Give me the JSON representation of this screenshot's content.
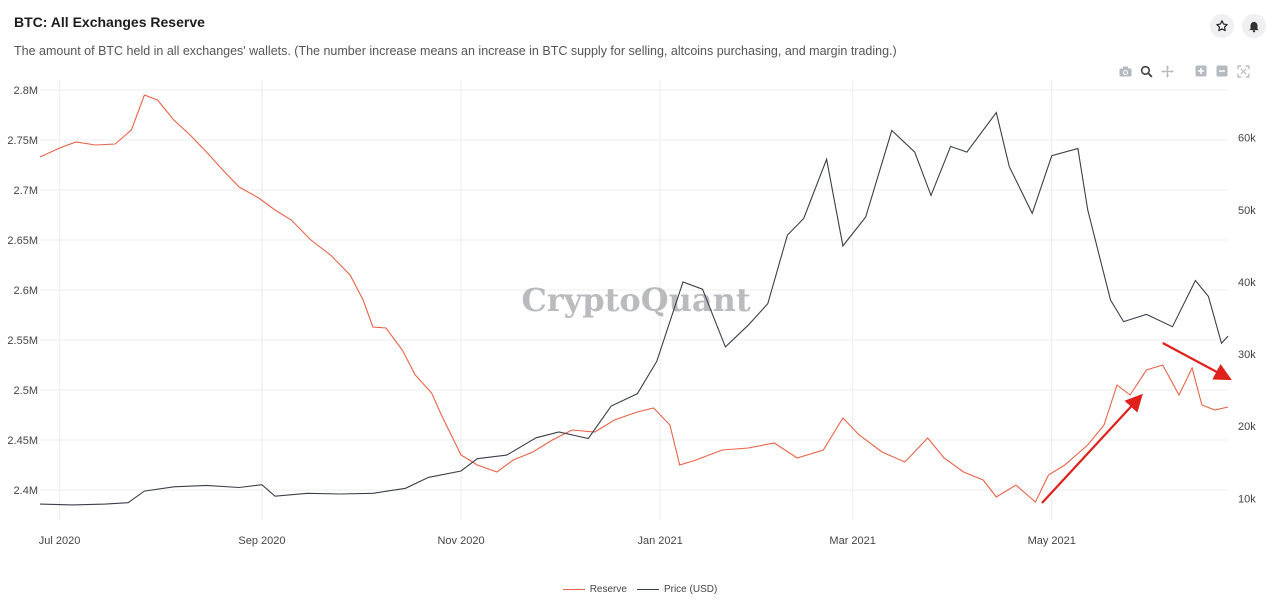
{
  "header": {
    "title": "BTC: All Exchanges Reserve",
    "subtitle": "The amount of BTC held in all exchanges' wallets. (The number increase means an increase in BTC supply for selling, altcoins purchasing, and margin trading.)"
  },
  "actions": {
    "favorite_icon": "star-icon",
    "alert_icon": "bell-icon"
  },
  "modebar": [
    "camera-icon",
    "zoom-icon",
    "pan-icon",
    "zoom-in-icon",
    "zoom-out-icon",
    "autoscale-icon"
  ],
  "watermark": "CryptoQuant",
  "colors": {
    "reserve": "#e8634a",
    "price": "#3a3f4a",
    "arrow": "#e0201b",
    "grid": "#ececec"
  },
  "legend": {
    "reserve": "Reserve",
    "price": "Price (USD)"
  },
  "chart_data": {
    "type": "line",
    "x_axis": {
      "type": "date",
      "range": [
        "2020-06-25",
        "2021-06-24"
      ],
      "ticks": [
        {
          "date": "2020-07-01",
          "label": "Jul 2020"
        },
        {
          "date": "2020-09-01",
          "label": "Sep 2020"
        },
        {
          "date": "2020-11-01",
          "label": "Nov 2020"
        },
        {
          "date": "2021-01-01",
          "label": "Jan 2021"
        },
        {
          "date": "2021-03-01",
          "label": "Mar 2021"
        },
        {
          "date": "2021-05-01",
          "label": "May 2021"
        }
      ]
    },
    "y_left": {
      "range": [
        2.37,
        2.81
      ],
      "ticks": [
        {
          "value": 2.4,
          "label": "2.4M"
        },
        {
          "value": 2.45,
          "label": "2.45M"
        },
        {
          "value": 2.5,
          "label": "2.5M"
        },
        {
          "value": 2.55,
          "label": "2.55M"
        },
        {
          "value": 2.6,
          "label": "2.6M"
        },
        {
          "value": 2.65,
          "label": "2.65M"
        },
        {
          "value": 2.7,
          "label": "2.7M"
        },
        {
          "value": 2.75,
          "label": "2.75M"
        },
        {
          "value": 2.8,
          "label": "2.8M"
        }
      ]
    },
    "y_right": {
      "range": [
        7000,
        68000
      ],
      "ticks": [
        {
          "value": 10000,
          "label": "10k"
        },
        {
          "value": 20000,
          "label": "20k"
        },
        {
          "value": 30000,
          "label": "30k"
        },
        {
          "value": 40000,
          "label": "40k"
        },
        {
          "value": 50000,
          "label": "50k"
        },
        {
          "value": 60000,
          "label": "60k"
        }
      ]
    },
    "series": [
      {
        "name": "Reserve",
        "axis": "left",
        "unit": "M BTC",
        "points": [
          [
            "2020-06-25",
            2.733
          ],
          [
            "2020-07-01",
            2.742
          ],
          [
            "2020-07-06",
            2.748
          ],
          [
            "2020-07-12",
            2.745
          ],
          [
            "2020-07-18",
            2.746
          ],
          [
            "2020-07-23",
            2.76
          ],
          [
            "2020-07-27",
            2.795
          ],
          [
            "2020-07-31",
            2.79
          ],
          [
            "2020-08-05",
            2.77
          ],
          [
            "2020-08-10",
            2.755
          ],
          [
            "2020-08-15",
            2.738
          ],
          [
            "2020-08-20",
            2.72
          ],
          [
            "2020-08-25",
            2.703
          ],
          [
            "2020-08-31",
            2.692
          ],
          [
            "2020-09-05",
            2.68
          ],
          [
            "2020-09-10",
            2.67
          ],
          [
            "2020-09-16",
            2.65
          ],
          [
            "2020-09-22",
            2.635
          ],
          [
            "2020-09-28",
            2.615
          ],
          [
            "2020-10-02",
            2.59
          ],
          [
            "2020-10-05",
            2.563
          ],
          [
            "2020-10-09",
            2.562
          ],
          [
            "2020-10-14",
            2.54
          ],
          [
            "2020-10-18",
            2.515
          ],
          [
            "2020-10-23",
            2.497
          ],
          [
            "2020-10-26",
            2.475
          ],
          [
            "2020-10-29",
            2.455
          ],
          [
            "2020-11-01",
            2.435
          ],
          [
            "2020-11-06",
            2.425
          ],
          [
            "2020-11-12",
            2.418
          ],
          [
            "2020-11-17",
            2.43
          ],
          [
            "2020-11-23",
            2.438
          ],
          [
            "2020-11-29",
            2.45
          ],
          [
            "2020-12-05",
            2.46
          ],
          [
            "2020-12-12",
            2.458
          ],
          [
            "2020-12-18",
            2.47
          ],
          [
            "2020-12-25",
            2.478
          ],
          [
            "2020-12-30",
            2.482
          ],
          [
            "2021-01-04",
            2.465
          ],
          [
            "2021-01-07",
            2.425
          ],
          [
            "2021-01-12",
            2.43
          ],
          [
            "2021-01-20",
            2.44
          ],
          [
            "2021-01-28",
            2.442
          ],
          [
            "2021-02-05",
            2.447
          ],
          [
            "2021-02-12",
            2.432
          ],
          [
            "2021-02-20",
            2.44
          ],
          [
            "2021-02-26",
            2.472
          ],
          [
            "2021-03-03",
            2.455
          ],
          [
            "2021-03-10",
            2.438
          ],
          [
            "2021-03-17",
            2.428
          ],
          [
            "2021-03-24",
            2.452
          ],
          [
            "2021-03-29",
            2.432
          ],
          [
            "2021-04-04",
            2.418
          ],
          [
            "2021-04-10",
            2.41
          ],
          [
            "2021-04-14",
            2.393
          ],
          [
            "2021-04-20",
            2.405
          ],
          [
            "2021-04-26",
            2.388
          ],
          [
            "2021-04-30",
            2.415
          ],
          [
            "2021-05-05",
            2.425
          ],
          [
            "2021-05-12",
            2.445
          ],
          [
            "2021-05-17",
            2.465
          ],
          [
            "2021-05-21",
            2.505
          ],
          [
            "2021-05-25",
            2.495
          ],
          [
            "2021-05-30",
            2.52
          ],
          [
            "2021-06-04",
            2.525
          ],
          [
            "2021-06-09",
            2.495
          ],
          [
            "2021-06-13",
            2.522
          ],
          [
            "2021-06-16",
            2.485
          ],
          [
            "2021-06-20",
            2.48
          ],
          [
            "2021-06-24",
            2.483
          ]
        ]
      },
      {
        "name": "Price (USD)",
        "axis": "right",
        "unit": "USD",
        "points": [
          [
            "2020-06-25",
            9200
          ],
          [
            "2020-07-05",
            9100
          ],
          [
            "2020-07-15",
            9200
          ],
          [
            "2020-07-22",
            9400
          ],
          [
            "2020-07-27",
            11000
          ],
          [
            "2020-08-05",
            11600
          ],
          [
            "2020-08-15",
            11800
          ],
          [
            "2020-08-25",
            11500
          ],
          [
            "2020-09-01",
            11900
          ],
          [
            "2020-09-05",
            10300
          ],
          [
            "2020-09-15",
            10700
          ],
          [
            "2020-09-25",
            10600
          ],
          [
            "2020-10-05",
            10700
          ],
          [
            "2020-10-15",
            11400
          ],
          [
            "2020-10-22",
            12900
          ],
          [
            "2020-11-01",
            13800
          ],
          [
            "2020-11-06",
            15500
          ],
          [
            "2020-11-15",
            16000
          ],
          [
            "2020-11-24",
            18400
          ],
          [
            "2020-12-01",
            19200
          ],
          [
            "2020-12-10",
            18300
          ],
          [
            "2020-12-17",
            22800
          ],
          [
            "2020-12-25",
            24500
          ],
          [
            "2020-12-31",
            29000
          ],
          [
            "2021-01-08",
            40000
          ],
          [
            "2021-01-14",
            39000
          ],
          [
            "2021-01-21",
            31000
          ],
          [
            "2021-01-28",
            34000
          ],
          [
            "2021-02-03",
            37000
          ],
          [
            "2021-02-09",
            46500
          ],
          [
            "2021-02-14",
            48800
          ],
          [
            "2021-02-21",
            57000
          ],
          [
            "2021-02-26",
            45000
          ],
          [
            "2021-03-05",
            49000
          ],
          [
            "2021-03-13",
            61000
          ],
          [
            "2021-03-20",
            58000
          ],
          [
            "2021-03-25",
            52000
          ],
          [
            "2021-03-31",
            58800
          ],
          [
            "2021-04-05",
            58000
          ],
          [
            "2021-04-14",
            63500
          ],
          [
            "2021-04-18",
            56000
          ],
          [
            "2021-04-25",
            49500
          ],
          [
            "2021-05-01",
            57500
          ],
          [
            "2021-05-09",
            58500
          ],
          [
            "2021-05-12",
            50000
          ],
          [
            "2021-05-19",
            37500
          ],
          [
            "2021-05-23",
            34500
          ],
          [
            "2021-05-30",
            35500
          ],
          [
            "2021-06-07",
            33800
          ],
          [
            "2021-06-14",
            40200
          ],
          [
            "2021-06-18",
            38000
          ],
          [
            "2021-06-22",
            31500
          ],
          [
            "2021-06-24",
            32500
          ]
        ]
      }
    ],
    "annotations": [
      {
        "type": "arrow",
        "from": [
          "2021-04-28",
          2.387
        ],
        "to": [
          "2021-05-28",
          2.493
        ],
        "axis": "left"
      },
      {
        "type": "arrow",
        "from": [
          "2021-06-04",
          2.547
        ],
        "to": [
          "2021-06-24",
          2.512
        ],
        "axis": "left"
      }
    ]
  }
}
